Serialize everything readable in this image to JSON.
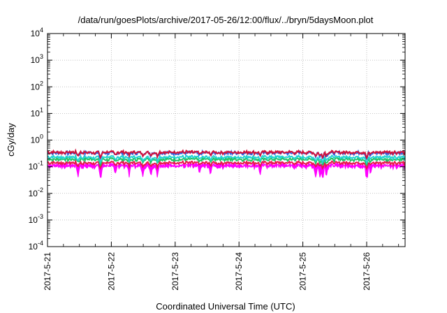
{
  "chart_data": {
    "type": "line",
    "title": "/data/run/goesPlots/archive/2017-05-26/12:00/flux/../bryn/5daysMoon.plot",
    "xlabel": "Coordinated Universal Time (UTC)",
    "ylabel": "cGy/day",
    "yscale": "log",
    "ylim": [
      0.0001,
      10000
    ],
    "xlim": [
      "2017-05-21 00:00",
      "2017-05-26 12:00"
    ],
    "x_ticks": [
      "2017-5-21",
      "2017-5-22",
      "2017-5-23",
      "2017-5-24",
      "2017-5-25",
      "2017-5-26"
    ],
    "y_ticks": [
      {
        "base": "10",
        "exp": "-4"
      },
      {
        "base": "10",
        "exp": "-3"
      },
      {
        "base": "10",
        "exp": "-2"
      },
      {
        "base": "10",
        "exp": "-1"
      },
      {
        "base": "10",
        "exp": "0"
      },
      {
        "base": "10",
        "exp": "1"
      },
      {
        "base": "10",
        "exp": "2"
      },
      {
        "base": "10",
        "exp": "3"
      },
      {
        "base": "10",
        "exp": "4"
      }
    ],
    "grid": true,
    "dips": [
      {
        "day": 0.48,
        "depth": 0.55
      },
      {
        "day": 0.83,
        "depth": 0.95
      },
      {
        "day": 1.06,
        "depth": 0.45
      },
      {
        "day": 1.28,
        "depth": 0.6
      },
      {
        "day": 1.49,
        "depth": 0.55
      },
      {
        "day": 1.62,
        "depth": 0.5
      },
      {
        "day": 1.72,
        "depth": 0.6
      },
      {
        "day": 2.38,
        "depth": 0.5
      },
      {
        "day": 2.55,
        "depth": 0.45
      },
      {
        "day": 3.33,
        "depth": 0.45
      },
      {
        "day": 4.2,
        "depth": 0.65
      },
      {
        "day": 4.27,
        "depth": 0.7
      },
      {
        "day": 4.31,
        "depth": 0.8
      },
      {
        "day": 4.37,
        "depth": 0.6
      },
      {
        "day": 5.0,
        "depth": 0.95
      },
      {
        "day": 5.06,
        "depth": 0.55
      }
    ],
    "series": [
      {
        "color": "#ff00ff",
        "base": 0.12,
        "bottom": 0.04,
        "fill": true
      },
      {
        "color": "#e8184a",
        "base": 0.14
      },
      {
        "color": "#22c060",
        "base": 0.19
      },
      {
        "color": "#22d3d3",
        "base": 0.23
      },
      {
        "color": "#3060e0",
        "base": 0.33
      },
      {
        "color": "#d0103a",
        "base": 0.35
      }
    ]
  }
}
